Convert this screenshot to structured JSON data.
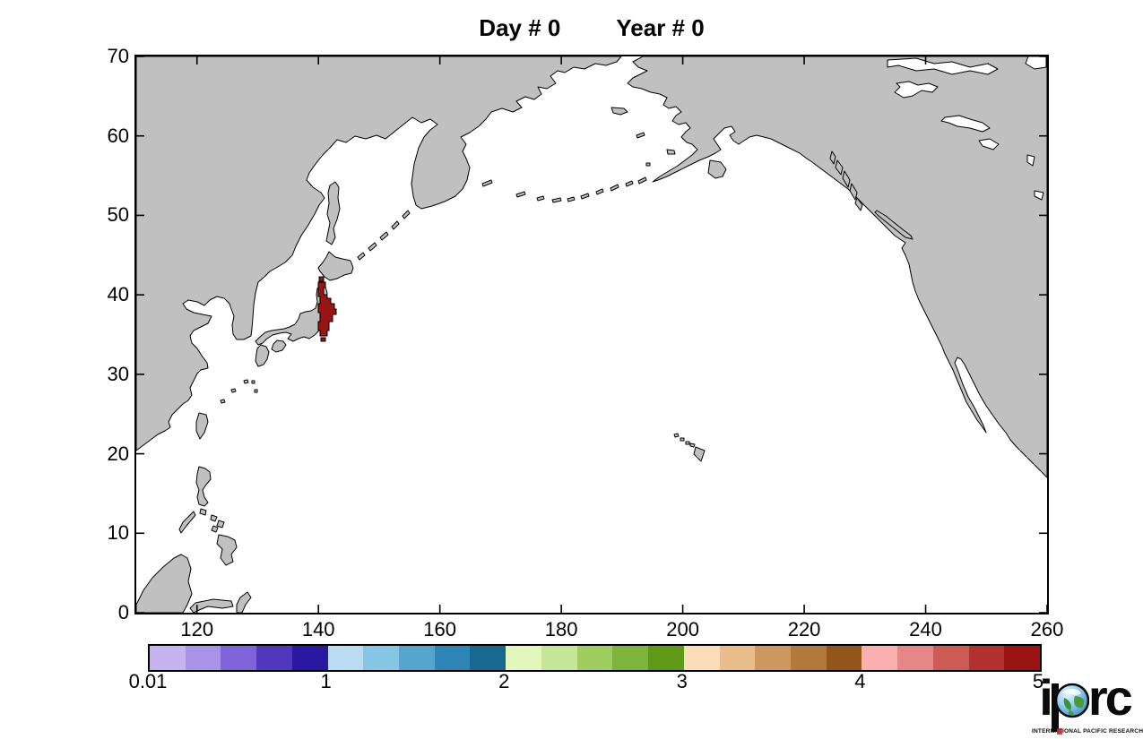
{
  "title": {
    "day": "Day # 0",
    "year": "Year # 0"
  },
  "map": {
    "lon_range": [
      110,
      260
    ],
    "lat_range": [
      0,
      70
    ],
    "x_ticks": [
      120,
      140,
      160,
      180,
      200,
      220,
      240,
      260
    ],
    "y_ticks": [
      0,
      10,
      20,
      30,
      40,
      50,
      60,
      70
    ],
    "land_color": "#c0c0c0",
    "ocean_color": "#ffffff",
    "coast_color": "#000000",
    "frame_color": "#000000"
  },
  "debris": {
    "color": "#9b1414",
    "description": "Initial tracer cells along northeast Honshu coast, Japan"
  },
  "colorbar": {
    "labels": [
      "0.01",
      "1",
      "2",
      "3",
      "4",
      "5"
    ],
    "colors": [
      "#c6b4f0",
      "#a893e8",
      "#7f63d8",
      "#5136be",
      "#2b18a2",
      "#b9dcf2",
      "#86c5e4",
      "#55a5ce",
      "#2e86b6",
      "#17698f",
      "#e3f7bd",
      "#c5e698",
      "#a0cd60",
      "#7db43b",
      "#5e9a17",
      "#fbdeb9",
      "#e9bc8b",
      "#cd9860",
      "#b1793b",
      "#93561a",
      "#fbafaf",
      "#e68686",
      "#cd5b55",
      "#b33131",
      "#9b1414"
    ]
  },
  "logo": {
    "letter_i": "i",
    "letters_rc": "rc",
    "caption": "INTERNATIONAL PACIFIC RESEARCH CENTER"
  },
  "chart_data": {
    "type": "map",
    "title": "Day # 0    Year # 0",
    "x_axis": {
      "ticks": [
        120,
        140,
        160,
        180,
        200,
        220,
        240,
        260
      ],
      "range": [
        110,
        260
      ],
      "unit": "degrees east longitude"
    },
    "y_axis": {
      "ticks": [
        0,
        10,
        20,
        30,
        40,
        50,
        60,
        70
      ],
      "range": [
        0,
        70
      ],
      "unit": "degrees north latitude"
    },
    "colorbar_scale": {
      "tick_labels": [
        "0.01",
        "1",
        "2",
        "3",
        "4",
        "5"
      ],
      "segments": 25
    },
    "overlay": {
      "value": 5,
      "color": "#9b1414",
      "lon_range": [
        140.5,
        142.5
      ],
      "lat_range": [
        35.5,
        41.5
      ],
      "description": "tracer concentration at maximum scale value along Japan Tohoku coast"
    }
  }
}
